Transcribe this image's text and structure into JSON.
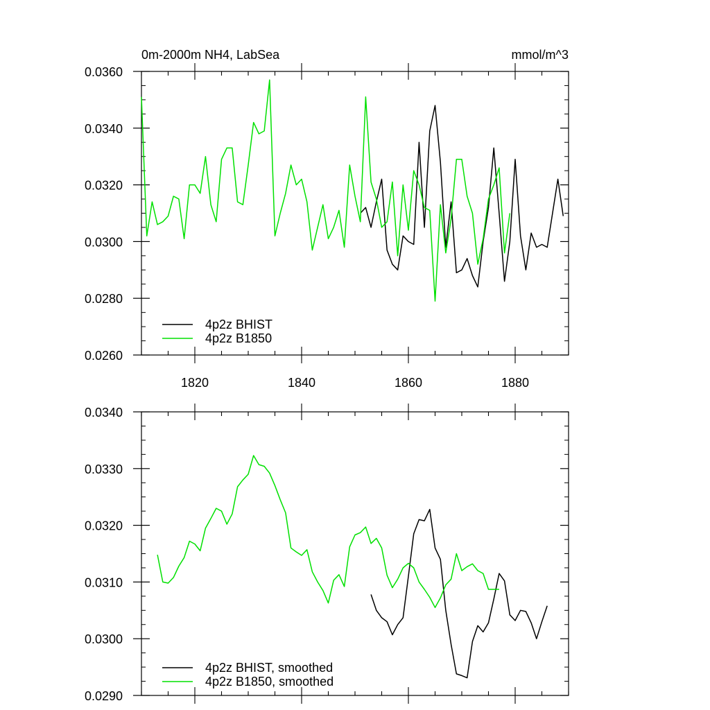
{
  "chart_data": [
    {
      "type": "line",
      "title": "0m-2000m NH4, LabSea",
      "units": "mmol/m^3",
      "xlim": [
        1810,
        1890
      ],
      "ylim": [
        0.026,
        0.036
      ],
      "yticks": [
        "0.0260",
        "0.0280",
        "0.0300",
        "0.0320",
        "0.0340",
        "0.0360"
      ],
      "xticks": [
        "1820",
        "1840",
        "1860",
        "1880"
      ],
      "legend_position": "bottom-left",
      "series": [
        {
          "name": "4p2z BHIST",
          "color": "#000000",
          "x": [
            1851,
            1852,
            1853,
            1854,
            1855,
            1856,
            1857,
            1858,
            1859,
            1860,
            1861,
            1862,
            1863,
            1864,
            1865,
            1866,
            1867,
            1868,
            1869,
            1870,
            1871,
            1872,
            1873,
            1874,
            1875,
            1876,
            1877,
            1878,
            1879,
            1880,
            1881,
            1882,
            1883,
            1884,
            1885,
            1886,
            1887,
            1888,
            1889
          ],
          "y": [
            0.031,
            0.0312,
            0.0305,
            0.0314,
            0.0322,
            0.0297,
            0.0292,
            0.029,
            0.0302,
            0.03,
            0.0299,
            0.0335,
            0.0305,
            0.0339,
            0.0348,
            0.0328,
            0.0298,
            0.0314,
            0.0289,
            0.029,
            0.0294,
            0.0288,
            0.0284,
            0.03,
            0.0312,
            0.0333,
            0.031,
            0.0286,
            0.03,
            0.0329,
            0.0302,
            0.029,
            0.0303,
            0.0298,
            0.0299,
            0.0298,
            0.031,
            0.0322,
            0.0309
          ]
        },
        {
          "name": "4p2z B1850",
          "color": "#00e000",
          "x": [
            1810,
            1811,
            1812,
            1813,
            1814,
            1815,
            1816,
            1817,
            1818,
            1819,
            1820,
            1821,
            1822,
            1823,
            1824,
            1825,
            1826,
            1827,
            1828,
            1829,
            1830,
            1831,
            1832,
            1833,
            1834,
            1835,
            1836,
            1837,
            1838,
            1839,
            1840,
            1841,
            1842,
            1843,
            1844,
            1845,
            1846,
            1847,
            1848,
            1849,
            1850,
            1851,
            1852,
            1853,
            1854,
            1855,
            1856,
            1857,
            1858,
            1859,
            1860,
            1861,
            1862,
            1863,
            1864,
            1865,
            1866,
            1867,
            1868,
            1869,
            1870,
            1871,
            1872,
            1873,
            1874,
            1875,
            1876,
            1877,
            1878,
            1879
          ],
          "y": [
            0.0351,
            0.0302,
            0.0314,
            0.0306,
            0.0307,
            0.0309,
            0.0316,
            0.0315,
            0.0301,
            0.032,
            0.032,
            0.0317,
            0.033,
            0.0313,
            0.0307,
            0.0329,
            0.0333,
            0.0333,
            0.0314,
            0.0313,
            0.0327,
            0.0342,
            0.0338,
            0.0339,
            0.0357,
            0.0302,
            0.031,
            0.0317,
            0.0327,
            0.032,
            0.0322,
            0.0314,
            0.0297,
            0.0305,
            0.0313,
            0.0301,
            0.0305,
            0.0311,
            0.0298,
            0.0327,
            0.0316,
            0.0307,
            0.0351,
            0.0321,
            0.0315,
            0.0305,
            0.0307,
            0.0321,
            0.0295,
            0.032,
            0.0304,
            0.0325,
            0.032,
            0.0312,
            0.0311,
            0.0279,
            0.0313,
            0.0296,
            0.0308,
            0.0329,
            0.0329,
            0.0316,
            0.031,
            0.0292,
            0.0301,
            0.0315,
            0.032,
            0.0326,
            0.0296,
            0.031
          ]
        }
      ]
    },
    {
      "type": "line",
      "xlim": [
        1810,
        1890
      ],
      "ylim": [
        0.029,
        0.034
      ],
      "yticks": [
        "0.0290",
        "0.0300",
        "0.0310",
        "0.0320",
        "0.0330",
        "0.0340"
      ],
      "legend_position": "bottom-left",
      "series": [
        {
          "name": "4p2z BHIST, smoothed",
          "color": "#000000",
          "x": [
            1853,
            1854,
            1855,
            1856,
            1857,
            1858,
            1859,
            1860,
            1861,
            1862,
            1863,
            1864,
            1865,
            1866,
            1867,
            1868,
            1869,
            1870,
            1871,
            1872,
            1873,
            1874,
            1875,
            1876,
            1877,
            1878,
            1879,
            1880,
            1881,
            1882,
            1883,
            1884,
            1885,
            1886
          ],
          "y": [
            0.03078,
            0.0305,
            0.03037,
            0.0303,
            0.03007,
            0.03025,
            0.03037,
            0.0311,
            0.03185,
            0.0321,
            0.03208,
            0.03228,
            0.0316,
            0.0314,
            0.0305,
            0.0299,
            0.02938,
            0.02935,
            0.02931,
            0.02995,
            0.03023,
            0.03012,
            0.03028,
            0.0307,
            0.03115,
            0.03102,
            0.03042,
            0.03032,
            0.0305,
            0.03048,
            0.03028,
            0.03,
            0.0303,
            0.03058
          ]
        },
        {
          "name": "4p2z B1850, smoothed",
          "color": "#00e000",
          "x": [
            1813,
            1814,
            1815,
            1816,
            1817,
            1818,
            1819,
            1820,
            1821,
            1822,
            1823,
            1824,
            1825,
            1826,
            1827,
            1828,
            1829,
            1830,
            1831,
            1832,
            1833,
            1834,
            1835,
            1836,
            1837,
            1838,
            1839,
            1840,
            1841,
            1842,
            1843,
            1844,
            1845,
            1846,
            1847,
            1848,
            1849,
            1850,
            1851,
            1852,
            1853,
            1854,
            1855,
            1856,
            1857,
            1858,
            1859,
            1860,
            1861,
            1862,
            1863,
            1864,
            1865,
            1866,
            1867,
            1868,
            1869,
            1870,
            1871,
            1872,
            1873,
            1874,
            1875,
            1876,
            1877
          ],
          "y": [
            0.03148,
            0.031,
            0.03098,
            0.03108,
            0.03128,
            0.03143,
            0.03172,
            0.03167,
            0.03155,
            0.03195,
            0.03212,
            0.0323,
            0.03225,
            0.03202,
            0.0322,
            0.03268,
            0.0328,
            0.0329,
            0.03323,
            0.03307,
            0.03304,
            0.03292,
            0.0327,
            0.03245,
            0.03222,
            0.0316,
            0.03153,
            0.03147,
            0.03157,
            0.03118,
            0.031,
            0.03085,
            0.03063,
            0.03103,
            0.03113,
            0.03092,
            0.03162,
            0.03183,
            0.03187,
            0.03197,
            0.03168,
            0.03177,
            0.0316,
            0.03112,
            0.0309,
            0.03105,
            0.03125,
            0.03133,
            0.03125,
            0.031,
            0.03087,
            0.03073,
            0.03055,
            0.03072,
            0.03095,
            0.03105,
            0.0315,
            0.0312,
            0.03127,
            0.03132,
            0.0312,
            0.03115,
            0.03087,
            0.03087,
            0.03087
          ]
        }
      ]
    }
  ]
}
